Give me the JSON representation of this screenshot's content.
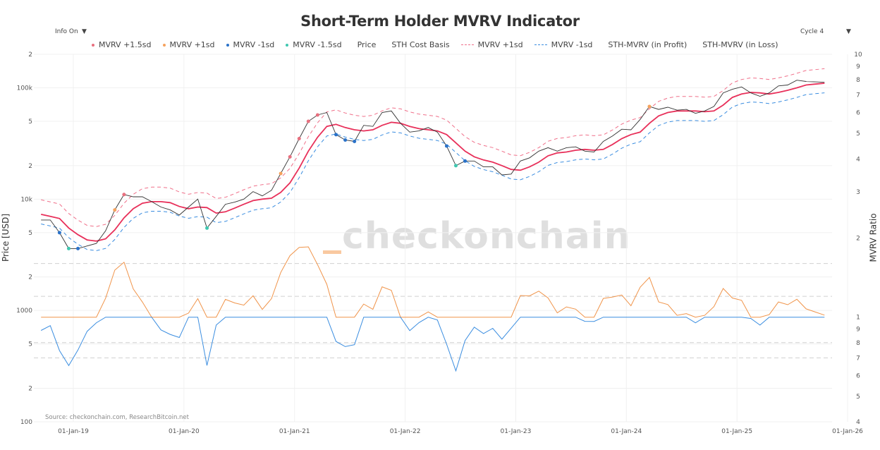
{
  "title": "Short-Term Holder MVRV Indicator",
  "controls": {
    "info_toggle": "Info On",
    "cycle_select": "Cycle 4",
    "arrow": "▼"
  },
  "source": "Source: checkonchain.com, ResearchBitcoin.net",
  "watermark": "checkonchain",
  "legend": [
    {
      "label": "MVRV +1.5sd",
      "kind": "dot",
      "color": "#e8707f"
    },
    {
      "label": "MVRV +1sd",
      "kind": "dot",
      "color": "#f5a25d"
    },
    {
      "label": "MVRV -1sd",
      "kind": "dot",
      "color": "#2a72c9"
    },
    {
      "label": "MVRV -1.5sd",
      "kind": "dot",
      "color": "#3fc7b0"
    },
    {
      "label": "Price",
      "kind": "line",
      "color": "#555555"
    },
    {
      "label": "STH Cost Basis",
      "kind": "line",
      "color": "#e8305a"
    },
    {
      "label": "MVRV +1sd",
      "kind": "dash",
      "color": "#f0708a"
    },
    {
      "label": "MVRV -1sd",
      "kind": "dash",
      "color": "#3a8de0"
    },
    {
      "label": "STH-MVRV (in Profit)",
      "kind": "line",
      "color": "#f0944a"
    },
    {
      "label": "STH-MVRV (in Loss)",
      "kind": "line",
      "color": "#3a8de0"
    }
  ],
  "chart_data": {
    "type": "line",
    "title": "Short-Term Holder MVRV Indicator",
    "y_left": {
      "label": "Price [USD]",
      "scale": "log",
      "range": [
        100,
        200000
      ],
      "ticks": [
        {
          "v": 200000,
          "t": "2"
        },
        {
          "v": 100000,
          "t": "100k"
        },
        {
          "v": 50000,
          "t": "5"
        },
        {
          "v": 20000,
          "t": "2"
        },
        {
          "v": 10000,
          "t": "10k"
        },
        {
          "v": 5000,
          "t": "5"
        },
        {
          "v": 2000,
          "t": "2"
        },
        {
          "v": 1000,
          "t": "1000"
        },
        {
          "v": 500,
          "t": "5"
        },
        {
          "v": 200,
          "t": "2"
        },
        {
          "v": 100,
          "t": "100"
        }
      ]
    },
    "y_right": {
      "label": "MVRV Ratio",
      "scale": "log",
      "range": [
        0.4,
        10
      ],
      "ticks": [
        {
          "v": 10,
          "t": "10"
        },
        {
          "v": 9,
          "t": "9"
        },
        {
          "v": 8,
          "t": "8"
        },
        {
          "v": 7,
          "t": "7"
        },
        {
          "v": 6,
          "t": "6"
        },
        {
          "v": 5,
          "t": "5"
        },
        {
          "v": 4,
          "t": "4"
        },
        {
          "v": 3,
          "t": "3"
        },
        {
          "v": 2,
          "t": "2"
        },
        {
          "v": 1,
          "t": "1"
        },
        {
          "v": 0.9,
          "t": "9"
        },
        {
          "v": 0.8,
          "t": "8"
        },
        {
          "v": 0.7,
          "t": "7"
        },
        {
          "v": 0.6,
          "t": "6"
        },
        {
          "v": 0.5,
          "t": "5"
        },
        {
          "v": 0.4,
          "t": "4"
        }
      ]
    },
    "x_ticks": [
      "01-Jan-19",
      "01-Jan-20",
      "01-Jan-21",
      "01-Jan-22",
      "01-Jan-23",
      "01-Jan-24",
      "01-Jan-25",
      "01-Jan-26"
    ],
    "mvrv_reference_levels": [
      1.6,
      1.2,
      0.8,
      0.7
    ],
    "mvrv_band_levels": {
      "plus_1_5sd": 1.55,
      "plus_1sd": 1.35,
      "minus_1sd": 0.82,
      "minus_1_5sd": 0.72
    },
    "grid": true,
    "legend_position": "top",
    "dates": [
      "2018-09",
      "2018-10",
      "2018-11",
      "2018-12",
      "2019-01",
      "2019-02",
      "2019-03",
      "2019-04",
      "2019-05",
      "2019-06",
      "2019-07",
      "2019-08",
      "2019-09",
      "2019-10",
      "2019-11",
      "2019-12",
      "2020-01",
      "2020-02",
      "2020-03",
      "2020-04",
      "2020-05",
      "2020-06",
      "2020-07",
      "2020-08",
      "2020-09",
      "2020-10",
      "2020-11",
      "2020-12",
      "2021-01",
      "2021-02",
      "2021-03",
      "2021-04",
      "2021-05",
      "2021-06",
      "2021-07",
      "2021-08",
      "2021-09",
      "2021-10",
      "2021-11",
      "2021-12",
      "2022-01",
      "2022-02",
      "2022-03",
      "2022-04",
      "2022-05",
      "2022-06",
      "2022-07",
      "2022-08",
      "2022-09",
      "2022-10",
      "2022-11",
      "2022-12",
      "2023-01",
      "2023-02",
      "2023-03",
      "2023-04",
      "2023-05",
      "2023-06",
      "2023-07",
      "2023-08",
      "2023-09",
      "2023-10",
      "2023-11",
      "2023-12",
      "2024-01",
      "2024-02",
      "2024-03",
      "2024-04",
      "2024-05",
      "2024-06",
      "2024-07",
      "2024-08",
      "2024-09",
      "2024-10",
      "2024-11",
      "2024-12",
      "2025-01",
      "2025-02",
      "2025-03",
      "2025-04",
      "2025-05",
      "2025-06",
      "2025-07",
      "2025-08",
      "2025-09",
      "2025-10"
    ],
    "series": [
      {
        "name": "Price",
        "values": [
          6500,
          6500,
          5000,
          3600,
          3600,
          3800,
          4000,
          5200,
          8000,
          11000,
          10500,
          10500,
          9500,
          8500,
          8000,
          7200,
          8500,
          10000,
          5500,
          7000,
          9000,
          9400,
          10000,
          11700,
          10700,
          12000,
          17000,
          24000,
          35000,
          50000,
          57000,
          60000,
          38000,
          34000,
          33000,
          46000,
          45000,
          60000,
          62000,
          48000,
          40000,
          41000,
          44000,
          40000,
          30000,
          20000,
          22000,
          22000,
          19500,
          19500,
          16500,
          16800,
          22000,
          23500,
          27000,
          29000,
          27000,
          29000,
          29500,
          27000,
          26500,
          33000,
          37000,
          42500,
          42000,
          52000,
          68000,
          64000,
          67000,
          63000,
          64000,
          59000,
          62000,
          68000,
          90000,
          97000,
          102000,
          90000,
          84000,
          90000,
          104000,
          106000,
          117000,
          114000,
          113000,
          112000
        ]
      },
      {
        "name": "STH Cost Basis",
        "values": [
          7300,
          7000,
          6700,
          5500,
          4800,
          4300,
          4200,
          4400,
          5300,
          6800,
          8200,
          9200,
          9500,
          9500,
          9300,
          8600,
          8200,
          8500,
          8400,
          7500,
          7700,
          8300,
          9000,
          9700,
          10000,
          10200,
          11500,
          14000,
          19000,
          27000,
          36000,
          45000,
          47000,
          44000,
          42000,
          41000,
          42000,
          46000,
          49000,
          48000,
          45000,
          43000,
          42000,
          41000,
          38000,
          32000,
          27000,
          24000,
          22500,
          21500,
          20000,
          18500,
          18200,
          19500,
          21500,
          24500,
          26000,
          26500,
          27500,
          28000,
          27500,
          28000,
          31000,
          35000,
          38000,
          40000,
          48000,
          56000,
          60000,
          62000,
          62000,
          62000,
          61000,
          62000,
          70000,
          82000,
          88000,
          91000,
          90000,
          88000,
          91000,
          95000,
          100000,
          106000,
          108000,
          110000
        ]
      }
    ]
  }
}
